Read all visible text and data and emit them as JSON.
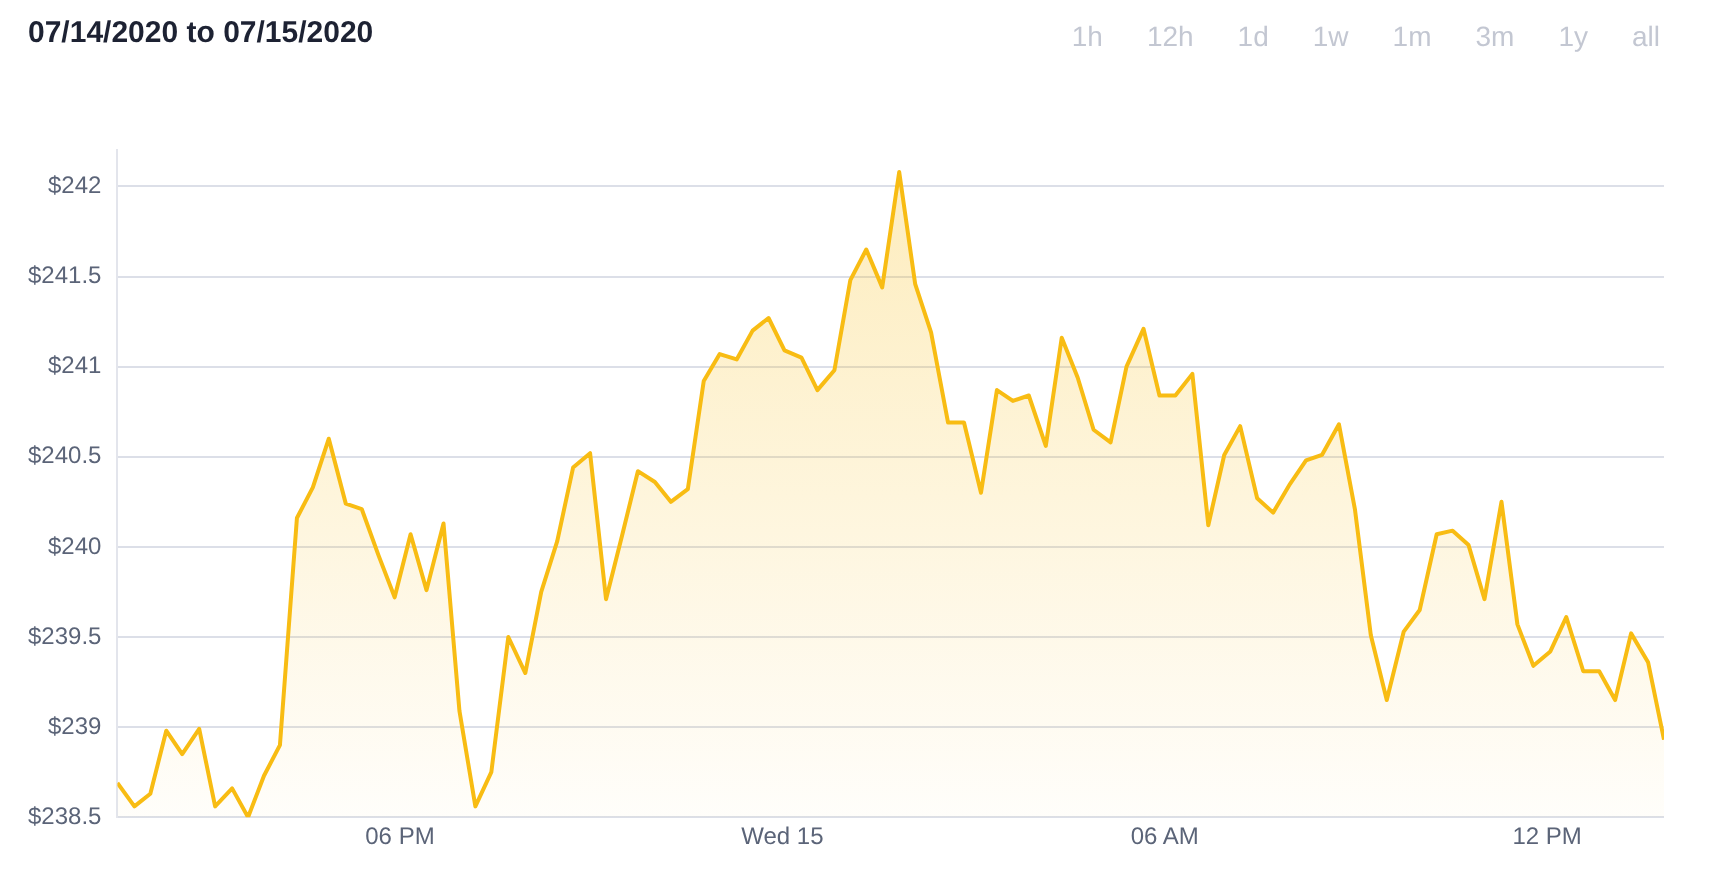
{
  "chart_data": {
    "type": "area",
    "title": "07/14/2020 to 07/15/2020",
    "annotations": [
      "1h",
      "12h",
      "1d",
      "1w",
      "1m",
      "3m",
      "1y",
      "all"
    ],
    "x": [
      "2020-07-14T13:34",
      "2020-07-14T13:50",
      "2020-07-14T14:05",
      "2020-07-14T14:20",
      "2020-07-14T14:35",
      "2020-07-14T14:51",
      "2020-07-14T15:06",
      "2020-07-14T15:22",
      "2020-07-14T15:37",
      "2020-07-14T15:52",
      "2020-07-14T16:07",
      "2020-07-14T16:23",
      "2020-07-14T16:38",
      "2020-07-14T16:53",
      "2020-07-14T17:09",
      "2020-07-14T17:24",
      "2020-07-14T17:40",
      "2020-07-14T17:55",
      "2020-07-14T18:10",
      "2020-07-14T18:25",
      "2020-07-14T18:41",
      "2020-07-14T18:56",
      "2020-07-14T19:11",
      "2020-07-14T19:26",
      "2020-07-14T19:42",
      "2020-07-14T19:58",
      "2020-07-14T20:13",
      "2020-07-14T20:28",
      "2020-07-14T20:43",
      "2020-07-14T20:59",
      "2020-07-14T21:14",
      "2020-07-14T21:29",
      "2020-07-14T21:44",
      "2020-07-14T22:00",
      "2020-07-14T22:15",
      "2020-07-14T22:31",
      "2020-07-14T22:46",
      "2020-07-14T23:01",
      "2020-07-14T23:17",
      "2020-07-14T23:32",
      "2020-07-14T23:47",
      "2020-07-15T00:02",
      "2020-07-15T00:18",
      "2020-07-15T00:33",
      "2020-07-15T00:49",
      "2020-07-15T01:04",
      "2020-07-15T01:19",
      "2020-07-15T01:34",
      "2020-07-15T01:50",
      "2020-07-15T02:05",
      "2020-07-15T02:20",
      "2020-07-15T02:36",
      "2020-07-15T02:51",
      "2020-07-15T03:07",
      "2020-07-15T03:22",
      "2020-07-15T03:37",
      "2020-07-15T03:52",
      "2020-07-15T04:08",
      "2020-07-15T04:23",
      "2020-07-15T04:38",
      "2020-07-15T04:53",
      "2020-07-15T05:09",
      "2020-07-15T05:24",
      "2020-07-15T05:40",
      "2020-07-15T05:55",
      "2020-07-15T06:10",
      "2020-07-15T06:26",
      "2020-07-15T06:41",
      "2020-07-15T06:56",
      "2020-07-15T07:11",
      "2020-07-15T07:27",
      "2020-07-15T07:42",
      "2020-07-15T07:58",
      "2020-07-15T08:13",
      "2020-07-15T08:28",
      "2020-07-15T08:44",
      "2020-07-15T08:59",
      "2020-07-15T09:14",
      "2020-07-15T09:29",
      "2020-07-15T09:45",
      "2020-07-15T10:00",
      "2020-07-15T10:16",
      "2020-07-15T10:31",
      "2020-07-15T10:46",
      "2020-07-15T11:01",
      "2020-07-15T11:17",
      "2020-07-15T11:32",
      "2020-07-15T11:47",
      "2020-07-15T12:03",
      "2020-07-15T12:18",
      "2020-07-15T12:34",
      "2020-07-15T12:49",
      "2020-07-15T13:04",
      "2020-07-15T13:19",
      "2020-07-15T13:35",
      "2020-07-15T13:50"
    ],
    "series": [
      {
        "color": "#f8bc13",
        "values": [
          238.69,
          238.56,
          238.63,
          238.98,
          238.85,
          238.99,
          238.56,
          238.66,
          238.5,
          238.73,
          238.9,
          240.16,
          240.33,
          240.6,
          240.24,
          240.21,
          239.95,
          239.72,
          240.07,
          239.76,
          240.13,
          239.09,
          238.56,
          238.75,
          239.5,
          239.3,
          239.75,
          240.03,
          240.44,
          240.52,
          239.71,
          240.06,
          240.42,
          240.36,
          240.25,
          240.32,
          240.92,
          241.07,
          241.04,
          241.2,
          241.27,
          241.09,
          241.05,
          240.87,
          240.98,
          241.48,
          241.65,
          241.44,
          242.08,
          241.46,
          241.19,
          240.69,
          240.69,
          240.3,
          240.87,
          240.81,
          240.84,
          240.56,
          241.16,
          240.94,
          240.65,
          240.58,
          241.0,
          241.21,
          240.84,
          240.84,
          240.96,
          240.12,
          240.51,
          240.67,
          240.27,
          240.19,
          240.35,
          240.48,
          240.51,
          240.68,
          240.21,
          239.51,
          239.15,
          239.53,
          239.65,
          240.07,
          240.09,
          240.01,
          239.71,
          240.25,
          239.57,
          239.34,
          239.42,
          239.61,
          239.31,
          239.31,
          239.15,
          239.52,
          239.36,
          238.93
        ]
      }
    ],
    "xlim": [
      "2020-07-14T13:34",
      "2020-07-15T13:50"
    ],
    "xticks": [
      {
        "value": "2020-07-14T18:00",
        "label": "06 PM"
      },
      {
        "value": "2020-07-15T00:00",
        "label": "Wed 15"
      },
      {
        "value": "2020-07-15T06:00",
        "label": "06 AM"
      },
      {
        "value": "2020-07-15T12:00",
        "label": "12 PM"
      }
    ],
    "ylim": [
      238.5,
      242.2
    ],
    "yticks": [
      {
        "value": 238.5,
        "label": "$238.5"
      },
      {
        "value": 239,
        "label": "$239"
      },
      {
        "value": 239.5,
        "label": "$239.5"
      },
      {
        "value": 240,
        "label": "$240"
      },
      {
        "value": 240.5,
        "label": "$240.5"
      },
      {
        "value": 241,
        "label": "$241"
      },
      {
        "value": 241.5,
        "label": "$241.5"
      },
      {
        "value": 242,
        "label": "$242"
      }
    ],
    "grid": "y",
    "marker": "none",
    "line_style": "solid",
    "legend": false
  }
}
